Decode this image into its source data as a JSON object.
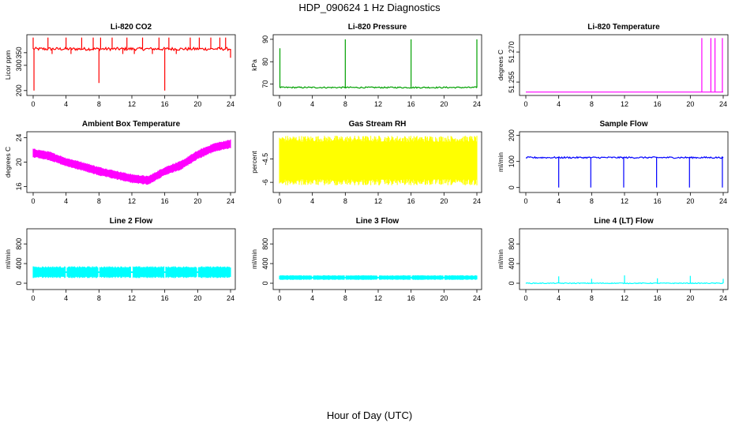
{
  "figure": {
    "title": "HDP_090624  1 Hz Diagnostics",
    "xlabel": "Hour of Day (UTC)"
  },
  "chart_data": [
    {
      "type": "line",
      "title": "Li-820 CO2",
      "ylabel": "Licor ppm",
      "color": "#ff0000",
      "xlim": [
        0,
        24
      ],
      "ylim": [
        190,
        412
      ],
      "xticks": [
        0,
        4,
        8,
        12,
        16,
        20,
        24
      ],
      "yticks": [
        200,
        300,
        350
      ],
      "series": [
        {
          "baseline": 365,
          "noise": 6,
          "spikes": [
            [
              0,
              410
            ],
            [
              0.1,
              200
            ],
            [
              1.8,
              410
            ],
            [
              2.3,
              345
            ],
            [
              4.0,
              410
            ],
            [
              4.6,
              345
            ],
            [
              5.9,
              410
            ],
            [
              7.3,
              410
            ],
            [
              8.0,
              230
            ],
            [
              8.2,
              410
            ],
            [
              9.6,
              410
            ],
            [
              10.9,
              345
            ],
            [
              11.4,
              410
            ],
            [
              12.3,
              345
            ],
            [
              13.3,
              410
            ],
            [
              14.5,
              345
            ],
            [
              15.3,
              410
            ],
            [
              16.0,
              200
            ],
            [
              16.5,
              410
            ],
            [
              17.4,
              345
            ],
            [
              19.1,
              410
            ],
            [
              20.2,
              410
            ],
            [
              21.6,
              410
            ],
            [
              22.7,
              410
            ],
            [
              23.4,
              410
            ],
            [
              24.0,
              330
            ]
          ]
        }
      ]
    },
    {
      "type": "line",
      "title": "Li-820 Pressure",
      "ylabel": "kPa",
      "color": "#00a000",
      "xlim": [
        0,
        24
      ],
      "ylim": [
        66,
        91
      ],
      "xticks": [
        0,
        4,
        8,
        12,
        16,
        20,
        24
      ],
      "yticks": [
        70,
        80,
        90
      ],
      "series": [
        {
          "baseline": 68.5,
          "noise": 0.3,
          "spikes": [
            [
              0.05,
              86
            ],
            [
              8.0,
              90
            ],
            [
              16.0,
              90
            ],
            [
              24.0,
              90
            ]
          ]
        }
      ]
    },
    {
      "type": "line",
      "title": "Li-820 Temperature",
      "ylabel": "degrees C",
      "color": "#ff00ff",
      "xlim": [
        0,
        24
      ],
      "ylim": [
        51.2495,
        51.2775
      ],
      "xticks": [
        0,
        4,
        8,
        12,
        16,
        20,
        24
      ],
      "yticks": [
        51.255,
        51.27
      ],
      "ytick_labels": [
        "51.255",
        "51.270"
      ],
      "series": [
        {
          "baseline": 51.25,
          "noise": 0,
          "spikes": [
            [
              21.4,
              51.277
            ],
            [
              22.5,
              51.277
            ],
            [
              23.0,
              51.277
            ],
            [
              23.9,
              51.277
            ]
          ]
        }
      ]
    },
    {
      "type": "area",
      "title": "Ambient Box Temperature",
      "ylabel": "degrees C",
      "color": "#ff00ff",
      "xlim": [
        0,
        24
      ],
      "ylim": [
        15.4,
        24.6
      ],
      "xticks": [
        0,
        4,
        8,
        12,
        16,
        20,
        24
      ],
      "yticks": [
        16,
        20,
        24
      ],
      "series": [
        {
          "x": [
            0,
            2,
            4,
            6,
            8,
            10,
            12,
            14,
            16,
            18,
            20,
            22,
            24
          ],
          "y": [
            21.5,
            21.0,
            20.0,
            19.3,
            18.5,
            17.9,
            17.3,
            17.0,
            18.5,
            19.5,
            21.2,
            22.4,
            23.0
          ],
          "band": 1.5
        }
      ]
    },
    {
      "type": "area",
      "title": "Gas Stream RH",
      "ylabel": "percent",
      "color": "#ffff00",
      "xlim": [
        0,
        24
      ],
      "ylim": [
        -6.5,
        -2.9
      ],
      "xticks": [
        0,
        4,
        8,
        12,
        16,
        20,
        24
      ],
      "yticks": [
        -4.5,
        -6.0
      ],
      "series": [
        {
          "x": [
            0,
            24
          ],
          "y": [
            -4.6,
            -4.6
          ],
          "band": 3.2
        }
      ]
    },
    {
      "type": "line",
      "title": "Sample Flow",
      "ylabel": "ml/min",
      "color": "#0000ff",
      "xlim": [
        0,
        24
      ],
      "ylim": [
        -10,
        205
      ],
      "xticks": [
        0,
        4,
        8,
        12,
        16,
        20,
        24
      ],
      "yticks": [
        0,
        100,
        200
      ],
      "series": [
        {
          "baseline": 115,
          "noise": 3,
          "spikes": [
            [
              4.0,
              0
            ],
            [
              7.9,
              0
            ],
            [
              11.9,
              0
            ],
            [
              15.9,
              0
            ],
            [
              19.9,
              0
            ],
            [
              23.9,
              0
            ]
          ]
        }
      ]
    },
    {
      "type": "area",
      "title": "Line 2 Flow",
      "ylabel": "ml/min",
      "color": "#00ffff",
      "xlim": [
        0,
        24
      ],
      "ylim": [
        -80,
        1060
      ],
      "xticks": [
        0,
        4,
        8,
        12,
        16,
        20,
        24
      ],
      "yticks": [
        0,
        400,
        800
      ],
      "series": [
        {
          "x": [
            0,
            24
          ],
          "y": [
            225,
            225
          ],
          "band": 240,
          "gaps": [
            4.0,
            8.0,
            12.0,
            16.0,
            20.0
          ]
        }
      ]
    },
    {
      "type": "area",
      "title": "Line 3 Flow",
      "ylabel": "ml/min",
      "color": "#00ffff",
      "xlim": [
        0,
        24
      ],
      "ylim": [
        -80,
        1060
      ],
      "xticks": [
        0,
        4,
        8,
        12,
        16,
        20,
        24
      ],
      "yticks": [
        0,
        400,
        800
      ],
      "series": [
        {
          "x": [
            0,
            24
          ],
          "y": [
            115,
            115
          ],
          "band": 95,
          "gaps": [
            4.0,
            8.0,
            12.0,
            16.0,
            20.0
          ]
        }
      ]
    },
    {
      "type": "line",
      "title": "Line 4 (LT) Flow",
      "ylabel": "ml/min",
      "color": "#00ffff",
      "xlim": [
        0,
        24
      ],
      "ylim": [
        -80,
        1060
      ],
      "xticks": [
        0,
        4,
        8,
        12,
        16,
        20,
        24
      ],
      "yticks": [
        0,
        400,
        800
      ],
      "series": [
        {
          "baseline": 0,
          "noise": 8,
          "spikes": [
            [
              4.0,
              140
            ],
            [
              8.0,
              90
            ],
            [
              12.0,
              160
            ],
            [
              16.0,
              100
            ],
            [
              20.0,
              150
            ],
            [
              24.0,
              90
            ]
          ]
        }
      ]
    }
  ]
}
